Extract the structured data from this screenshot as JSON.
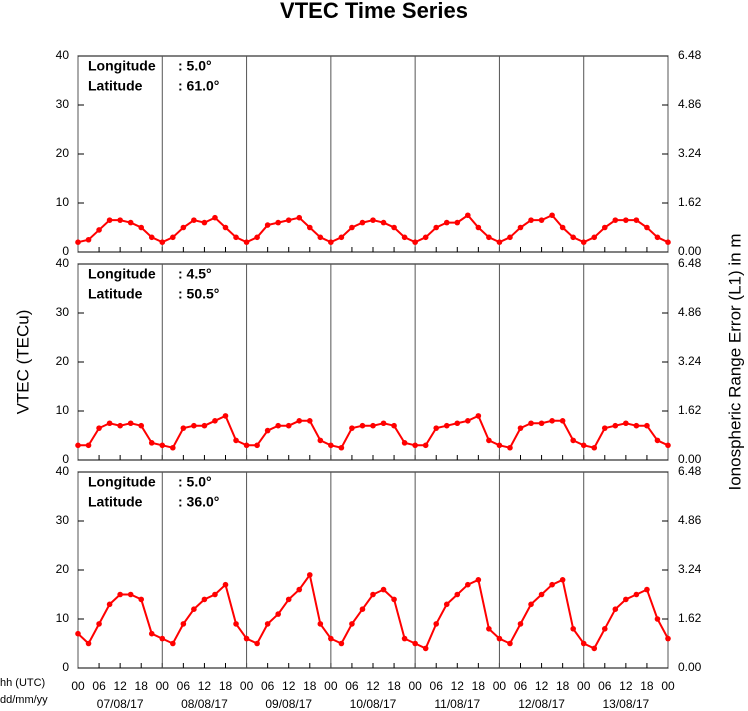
{
  "figure": {
    "title": "VTEC Time Series",
    "y_label": "VTEC (TECu)",
    "y2_label": "Ionospheric Range Error (L1) in m",
    "x_label_time": "hh (UTC)",
    "x_label_date": "dd/mm/yy"
  },
  "x_axis": {
    "xlim": [
      0,
      168
    ],
    "x": [
      0,
      3,
      6,
      9,
      12,
      15,
      18,
      21,
      24,
      27,
      30,
      33,
      36,
      39,
      42,
      45,
      48,
      51,
      54,
      57,
      60,
      63,
      66,
      69,
      72,
      75,
      78,
      81,
      84,
      87,
      90,
      93,
      96,
      99,
      102,
      105,
      108,
      111,
      114,
      117,
      120,
      123,
      126,
      129,
      132,
      135,
      138,
      141,
      144,
      147,
      150,
      153,
      156,
      159,
      162,
      165,
      168
    ],
    "xticks": [
      {
        "value": 0,
        "label": "00"
      },
      {
        "value": 6,
        "label": "06"
      },
      {
        "value": 12,
        "label": "12"
      },
      {
        "value": 18,
        "label": "18"
      },
      {
        "value": 24,
        "label": "00"
      },
      {
        "value": 30,
        "label": "06"
      },
      {
        "value": 36,
        "label": "12"
      },
      {
        "value": 42,
        "label": "18"
      },
      {
        "value": 48,
        "label": "00"
      },
      {
        "value": 54,
        "label": "06"
      },
      {
        "value": 60,
        "label": "12"
      },
      {
        "value": 66,
        "label": "18"
      },
      {
        "value": 72,
        "label": "00"
      },
      {
        "value": 78,
        "label": "06"
      },
      {
        "value": 84,
        "label": "12"
      },
      {
        "value": 90,
        "label": "18"
      },
      {
        "value": 96,
        "label": "00"
      },
      {
        "value": 102,
        "label": "06"
      },
      {
        "value": 108,
        "label": "12"
      },
      {
        "value": 114,
        "label": "18"
      },
      {
        "value": 120,
        "label": "00"
      },
      {
        "value": 126,
        "label": "06"
      },
      {
        "value": 132,
        "label": "12"
      },
      {
        "value": 138,
        "label": "18"
      },
      {
        "value": 144,
        "label": "00"
      },
      {
        "value": 150,
        "label": "06"
      },
      {
        "value": 156,
        "label": "12"
      },
      {
        "value": 162,
        "label": "18"
      },
      {
        "value": 168,
        "label": "00"
      }
    ],
    "date_ticks": [
      {
        "value": 12,
        "label": "07/08/17"
      },
      {
        "value": 36,
        "label": "08/08/17"
      },
      {
        "value": 60,
        "label": "09/08/17"
      },
      {
        "value": 84,
        "label": "10/08/17"
      },
      {
        "value": 108,
        "label": "11/08/17"
      },
      {
        "value": 132,
        "label": "12/08/17"
      },
      {
        "value": 156,
        "label": "13/08/17"
      }
    ]
  },
  "chart_data": [
    {
      "type": "line",
      "info": [
        {
          "name": "Longitude",
          "value": ": 5.0°"
        },
        {
          "name": "Latitude",
          "value": ": 61.0°"
        }
      ],
      "ylim": [
        0,
        40
      ],
      "yticks": [
        0,
        10,
        20,
        30,
        40
      ],
      "y2lim": [
        0,
        6.48
      ],
      "y2ticks": [
        {
          "value": 0,
          "label": "0.00"
        },
        1.62,
        3.24,
        4.86,
        6.48
      ],
      "series": [
        {
          "color": "#ff0000",
          "values": [
            2,
            2.5,
            4.5,
            6.5,
            6.5,
            6,
            5,
            3,
            2,
            3,
            5,
            6.5,
            6,
            7,
            5,
            3,
            2,
            3,
            5.5,
            6,
            6.5,
            7,
            5,
            3,
            2,
            3,
            5,
            6,
            6.5,
            6,
            5,
            3,
            2,
            3,
            5,
            6,
            6,
            7.5,
            5,
            3,
            2,
            3,
            5,
            6.5,
            6.5,
            7.5,
            5,
            3,
            2,
            3,
            5,
            6.5,
            6.5,
            6.5,
            5,
            3,
            2
          ]
        }
      ]
    },
    {
      "type": "line",
      "info": [
        {
          "name": "Longitude",
          "value": ": 4.5°"
        },
        {
          "name": "Latitude",
          "value": ": 50.5°"
        }
      ],
      "ylim": [
        0,
        40
      ],
      "yticks": [
        0,
        10,
        20,
        30,
        40
      ],
      "y2lim": [
        0,
        6.48
      ],
      "y2ticks": [
        {
          "value": 0,
          "label": "0.00"
        },
        1.62,
        3.24,
        4.86,
        6.48
      ],
      "series": [
        {
          "color": "#ff0000",
          "values": [
            3,
            3,
            6.5,
            7.5,
            7,
            7.5,
            7,
            3.5,
            3,
            2.5,
            6.5,
            7,
            7,
            8,
            9,
            4,
            3,
            3,
            6,
            7,
            7,
            8,
            8,
            4,
            3,
            2.5,
            6.5,
            7,
            7,
            7.5,
            7,
            3.5,
            3,
            3,
            6.5,
            7,
            7.5,
            8,
            9,
            4,
            3,
            2.5,
            6.5,
            7.5,
            7.5,
            8,
            8,
            4,
            3,
            2.5,
            6.5,
            7,
            7.5,
            7,
            7,
            4,
            3
          ]
        }
      ]
    },
    {
      "type": "line",
      "info": [
        {
          "name": "Longitude",
          "value": ": 5.0°"
        },
        {
          "name": "Latitude",
          "value": ": 36.0°"
        }
      ],
      "ylim": [
        0,
        40
      ],
      "yticks": [
        0,
        10,
        20,
        30,
        40
      ],
      "y2lim": [
        0,
        6.48
      ],
      "y2ticks": [
        {
          "value": 0,
          "label": "0.00"
        },
        1.62,
        3.24,
        4.86,
        6.48
      ],
      "series": [
        {
          "color": "#ff0000",
          "values": [
            7,
            5,
            9,
            13,
            15,
            15,
            14,
            7,
            6,
            5,
            9,
            12,
            14,
            15,
            17,
            9,
            6,
            5,
            9,
            11,
            14,
            16,
            19,
            9,
            6,
            5,
            9,
            12,
            15,
            16,
            14,
            6,
            5,
            4,
            9,
            13,
            15,
            17,
            18,
            8,
            6,
            5,
            9,
            13,
            15,
            17,
            18,
            8,
            5,
            4,
            8,
            12,
            14,
            15,
            16,
            10,
            6
          ]
        }
      ]
    }
  ]
}
